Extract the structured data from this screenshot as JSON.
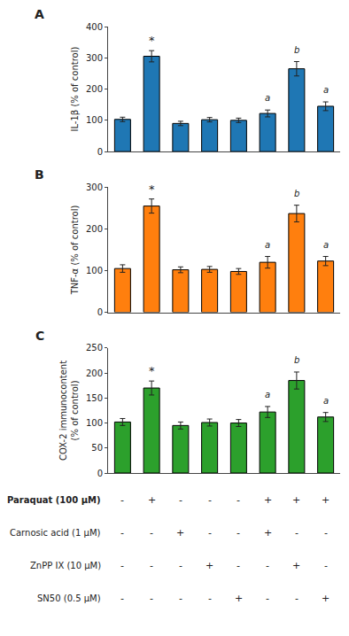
{
  "chart_data": [
    {
      "type": "bar",
      "title": "A",
      "ylabel": "IL-1β (% of control)",
      "categories": [
        null,
        null,
        null,
        null,
        null,
        null,
        null,
        null
      ],
      "values": [
        103,
        305,
        90,
        102,
        100,
        122,
        265,
        145
      ],
      "errors": [
        7,
        18,
        7,
        7,
        7,
        11,
        23,
        14
      ],
      "ylim": [
        0,
        400
      ],
      "yticks": [
        0,
        100,
        200,
        300,
        400
      ],
      "grid": false,
      "tick_labels": "y",
      "annotations": [
        {
          "index": 1,
          "text": "*"
        },
        {
          "index": 5,
          "text": "a"
        },
        {
          "index": 6,
          "text": "b"
        },
        {
          "index": 7,
          "text": "a"
        }
      ]
    },
    {
      "type": "bar",
      "title": "B",
      "ylabel": "TNF-α (% of control)",
      "categories": [
        null,
        null,
        null,
        null,
        null,
        null,
        null,
        null
      ],
      "values": [
        105,
        255,
        102,
        103,
        98,
        120,
        237,
        123
      ],
      "errors": [
        9,
        17,
        7,
        7,
        7,
        14,
        20,
        11
      ],
      "ylim": [
        0,
        300
      ],
      "yticks": [
        0,
        100,
        200,
        300
      ],
      "grid": false,
      "tick_labels": "y",
      "annotations": [
        {
          "index": 1,
          "text": "*"
        },
        {
          "index": 5,
          "text": "a"
        },
        {
          "index": 6,
          "text": "b"
        },
        {
          "index": 7,
          "text": "a"
        }
      ]
    },
    {
      "type": "bar",
      "title": "C",
      "ylabel": "COX-2 immunocontent\n(% of control)",
      "categories": [
        null,
        null,
        null,
        null,
        null,
        null,
        null,
        null
      ],
      "values": [
        102,
        170,
        95,
        101,
        100,
        122,
        185,
        112
      ],
      "errors": [
        7,
        14,
        7,
        7,
        7,
        11,
        17,
        9
      ],
      "ylim": [
        0,
        250
      ],
      "yticks": [
        0,
        50,
        100,
        150,
        200,
        250
      ],
      "grid": false,
      "tick_labels": "y",
      "annotations": [
        {
          "index": 1,
          "text": "*"
        },
        {
          "index": 5,
          "text": "a"
        },
        {
          "index": 6,
          "text": "b"
        },
        {
          "index": 7,
          "text": "a"
        }
      ],
      "table": {
        "rows": [
          "Paraquat (100 μM)",
          "Carnosic acid (1 μM)",
          "ZnPP IX (10 μM)",
          "SN50 (0.5 μM)"
        ],
        "cols": [
          [
            "-",
            "-",
            "-",
            "-"
          ],
          [
            "+",
            "-",
            "-",
            "-"
          ],
          [
            "-",
            "+",
            "-",
            "-"
          ],
          [
            "-",
            "-",
            "+",
            "-"
          ],
          [
            "-",
            "-",
            "-",
            "+"
          ],
          [
            "+",
            "+",
            "-",
            "-"
          ],
          [
            "+",
            "-",
            "+",
            "-"
          ],
          [
            "+",
            "-",
            "-",
            "+"
          ]
        ]
      }
    }
  ]
}
